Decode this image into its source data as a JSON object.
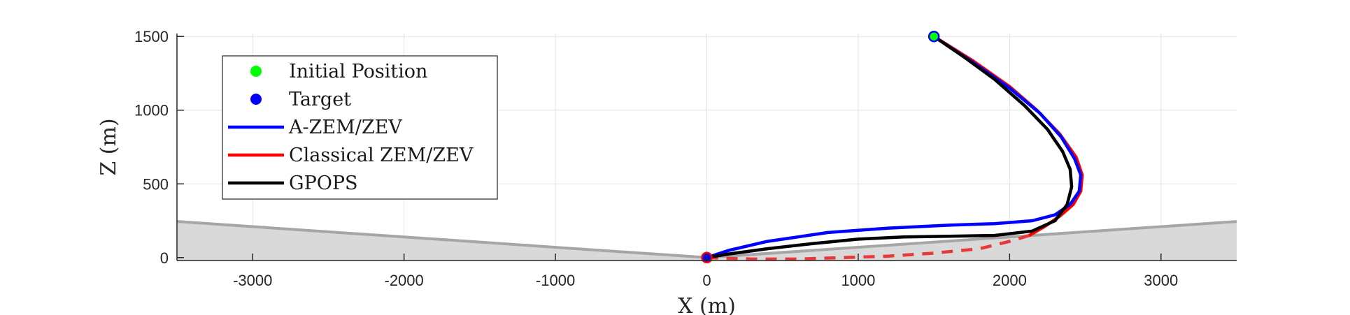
{
  "chart_data": {
    "type": "line",
    "xlabel": "X (m)",
    "ylabel": "Z (m)",
    "xlim": [
      -3500,
      3500
    ],
    "ylim": [
      -20,
      1520
    ],
    "grid": true,
    "legend_position": "top-left",
    "x_ticks": [
      -3000,
      -2000,
      -1000,
      0,
      1000,
      2000,
      3000
    ],
    "x_tick_labels": [
      "-3000",
      "-2000",
      "-1000",
      "0",
      "1000",
      "2000",
      "3000"
    ],
    "y_ticks": [
      0,
      500,
      1000,
      1500
    ],
    "y_tick_labels": [
      "0",
      "500",
      "1000",
      "1500"
    ],
    "terrain": {
      "color": "#a6a6a6",
      "fill": "#d9d9d9",
      "x": [
        -3500,
        0,
        3500
      ],
      "y": [
        245,
        0,
        245
      ]
    },
    "legend": [
      {
        "label": "Initial Position",
        "kind": "marker",
        "color": "#00ff00"
      },
      {
        "label": "Target",
        "kind": "marker",
        "color": "#0000ff"
      },
      {
        "label": "A-ZEM/ZEV",
        "kind": "line",
        "color": "#0000ff"
      },
      {
        "label": "Classical ZEM/ZEV",
        "kind": "line",
        "color": "#ff0000"
      },
      {
        "label": "GPOPS",
        "kind": "line",
        "color": "#000000"
      }
    ],
    "points": {
      "initial": {
        "x": 1500,
        "y": 1500
      },
      "target": {
        "x": 0,
        "y": 0
      }
    },
    "series": [
      {
        "name": "Classical ZEM/ZEV",
        "color": "#ff0000",
        "solid": {
          "x": [
            1500,
            1750,
            2000,
            2180,
            2330,
            2440,
            2480,
            2470,
            2420,
            2330,
            2230,
            2130
          ],
          "y": [
            1500,
            1340,
            1160,
            1000,
            840,
            680,
            560,
            450,
            360,
            280,
            210,
            150
          ]
        },
        "dashed": {
          "x": [
            2130,
            2000,
            1800,
            1500,
            1200,
            900,
            600,
            300,
            100,
            0
          ],
          "y": [
            150,
            110,
            60,
            30,
            10,
            0,
            -10,
            -10,
            -5,
            0
          ]
        }
      },
      {
        "name": "A-ZEM/ZEV",
        "color": "#0000ff",
        "x": [
          1500,
          1750,
          2000,
          2200,
          2340,
          2430,
          2470,
          2460,
          2400,
          2300,
          2150,
          1900,
          1600,
          1200,
          800,
          400,
          150,
          0
        ],
        "y": [
          1500,
          1330,
          1150,
          980,
          820,
          670,
          560,
          450,
          360,
          290,
          250,
          230,
          220,
          200,
          170,
          110,
          50,
          0
        ]
      },
      {
        "name": "GPOPS",
        "color": "#000000",
        "x": [
          1500,
          1700,
          1900,
          2100,
          2250,
          2350,
          2400,
          2410,
          2380,
          2300,
          2150,
          1900,
          1600,
          1300,
          1000,
          700,
          400,
          150,
          0
        ],
        "y": [
          1500,
          1360,
          1210,
          1030,
          870,
          720,
          600,
          480,
          360,
          250,
          180,
          150,
          145,
          140,
          125,
          95,
          60,
          25,
          0
        ]
      }
    ]
  }
}
